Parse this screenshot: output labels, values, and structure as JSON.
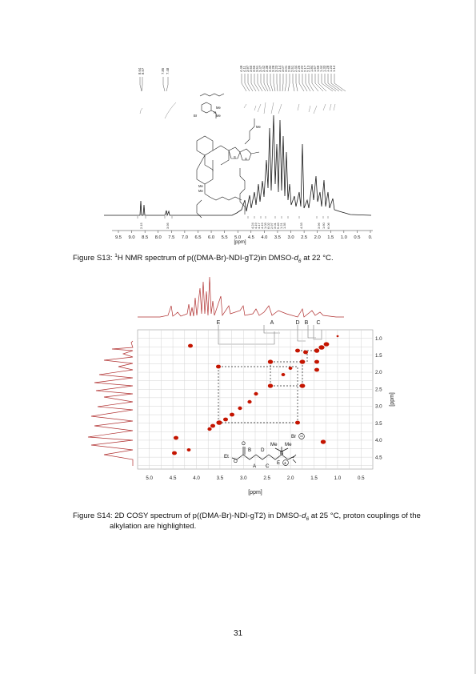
{
  "figure_s13": {
    "caption_prefix": "Figure S13: ",
    "caption_nucleus": "1",
    "caption_mid": "H NMR spectrum of p((DMA-Br)-NDI-gT2)in DMSO-",
    "caption_solvent_sub": "6",
    "caption_suffix": " at 22 °C.",
    "solvent_d": "d",
    "x_label": "[ppm]",
    "x_ticks": [
      "9.5",
      "9.0",
      "8.5",
      "8.0",
      "7.5",
      "7.0",
      "6.5",
      "6.0",
      "5.5",
      "5.0",
      "4.5",
      "4.0",
      "3.5",
      "3.0",
      "2.5",
      "2.0",
      "1.5",
      "1.0",
      "0.5",
      "0."
    ],
    "peak_labels_top": [
      "8.64",
      "8.57",
      "7.85",
      "7.48",
      "4.49",
      "4.11",
      "3.97",
      "3.60",
      "3.56",
      "3.51",
      "3.47",
      "3.42",
      "3.38",
      "3.34",
      "3.28",
      "3.23",
      "3.14",
      "3.07",
      "3.01",
      "2.96",
      "2.51",
      "2.44",
      "2.26",
      "2.22",
      "2.17",
      "2.13",
      "1.84",
      "1.67",
      "1.59",
      "1.44",
      "1.33",
      "1.28",
      "1.23",
      "1.14"
    ],
    "integration_labels": [
      "2.15",
      "3.95",
      "4.24",
      "4.19",
      "4.17",
      "4.19",
      "1.03",
      "6.02",
      "2.97",
      "3.01",
      "5.49",
      "1.21",
      "1.35",
      "4.33",
      "3.96",
      "1.60",
      "6.06"
    ],
    "structure_labels": [
      "Me",
      "Me",
      "N",
      "Br",
      "Me",
      "Me",
      "S",
      "S",
      "Me"
    ]
  },
  "figure_s14": {
    "caption_prefix": "Figure S14: 2D COSY spectrum of p((DMA-Br)-NDI-gT2) in DMSO-",
    "solvent_d": "d",
    "caption_solvent_sub": "6",
    "caption_suffix": " at 25 °C, proton couplings of the",
    "caption_line2": "alkylation are highlighted.",
    "x_label": "[ppm]",
    "y_label": "[ppm]",
    "x_ticks": [
      "5.0",
      "4.5",
      "4.0",
      "3.5",
      "3.0",
      "2.5",
      "2.0",
      "1.5",
      "1.0",
      "0.5"
    ],
    "y_ticks": [
      "1.0",
      "1.5",
      "2.0",
      "2.5",
      "3.0",
      "3.5",
      "4.0",
      "4.5"
    ],
    "assignments": [
      "E",
      "A",
      "D",
      "B",
      "C"
    ],
    "structure": {
      "counter_ion": "Br",
      "methyls": [
        "Me",
        "Me"
      ],
      "nitrogen": "N",
      "ester": "Et",
      "oxygen_top": "O",
      "oxygen_link": "O",
      "chain_labels": [
        "B",
        "D",
        "A",
        "C",
        "E"
      ],
      "charge": "+"
    }
  },
  "page_number": "31",
  "colors": {
    "spectrum": "#1a1a1a",
    "cosy_peak": "#c41400",
    "cosy_trace": "#b03030",
    "grid": "#cfcfcf"
  }
}
